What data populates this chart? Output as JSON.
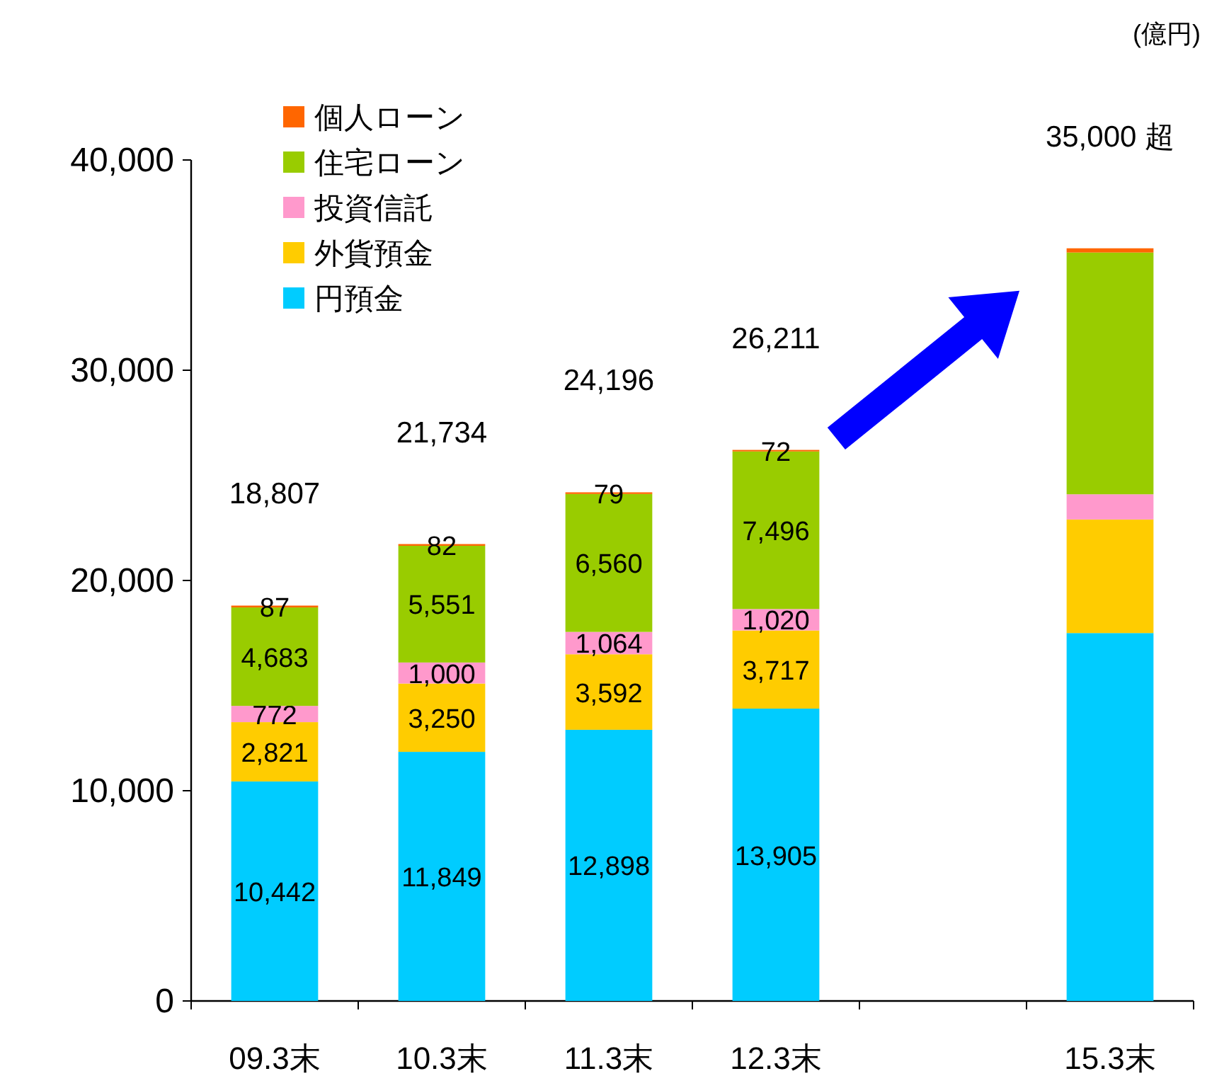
{
  "chart_data": {
    "type": "bar",
    "stacked": true,
    "categories": [
      "09.3末",
      "10.3末",
      "11.3末",
      "12.3末",
      null,
      "15.3末"
    ],
    "series": [
      {
        "name": "円預金",
        "color": "#00ccff",
        "values": [
          10442,
          11849,
          12898,
          13905,
          null,
          17500
        ],
        "value_labels": [
          "10,442",
          "11,849",
          "12,898",
          "13,905",
          null,
          null
        ]
      },
      {
        "name": "外貨預金",
        "color": "#ffcc00",
        "values": [
          2821,
          3250,
          3592,
          3717,
          null,
          5400
        ],
        "value_labels": [
          "2,821",
          "3,250",
          "3,592",
          "3,717",
          null,
          null
        ]
      },
      {
        "name": "投資信託",
        "color": "#ff99cc",
        "values": [
          772,
          1000,
          1064,
          1020,
          null,
          1200
        ],
        "value_labels": [
          "772",
          "1,000",
          "1,064",
          "1,020",
          null,
          null
        ]
      },
      {
        "name": "住宅ローン",
        "color": "#99cc00",
        "values": [
          4683,
          5551,
          6560,
          7496,
          null,
          11500
        ],
        "value_labels": [
          "4,683",
          "5,551",
          "6,560",
          "7,496",
          null,
          null
        ]
      },
      {
        "name": "個人ローン",
        "color": "#ff6600",
        "values": [
          87,
          82,
          79,
          72,
          null,
          200
        ],
        "value_labels": [
          "87",
          "82",
          "79",
          "72",
          null,
          null
        ]
      }
    ],
    "totals": [
      "18,807",
      "21,734",
      "24,196",
      "26,211",
      null,
      null
    ],
    "ylim": [
      0,
      40000
    ],
    "yticks": [
      0,
      {
        "value": 10000,
        "label": "10,000"
      },
      {
        "value": 20000,
        "label": "20,000"
      },
      {
        "value": 30000,
        "label": "30,000"
      },
      {
        "value": 40000,
        "label": "40,000"
      }
    ],
    "legend": "top left",
    "annotations": [
      "(億円)",
      "35,000 超"
    ]
  }
}
